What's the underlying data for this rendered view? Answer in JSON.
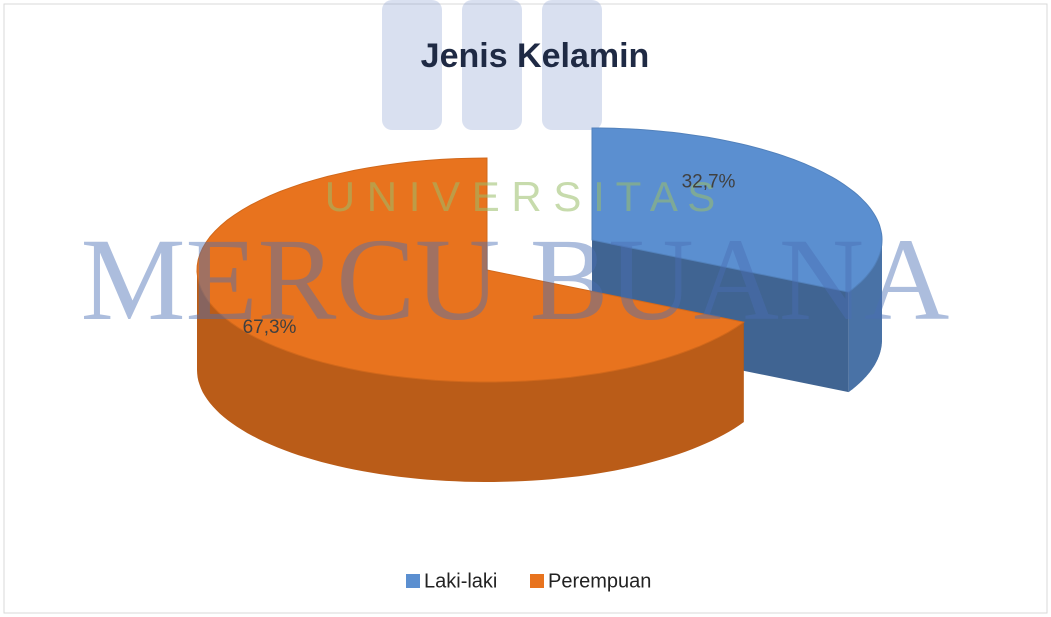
{
  "chart_data": {
    "type": "pie3d",
    "title": "Jenis Kelamin",
    "categories": [
      "Laki-laki",
      "Perempuan"
    ],
    "values": [
      32.7,
      67.3
    ],
    "value_labels": [
      "32,7%",
      "67,3%"
    ],
    "colors": [
      "#5b8fd0",
      "#e8731e"
    ],
    "legend": "bottom",
    "watermark": [
      "U N I V E R S I T A S",
      "MERCU BUANA"
    ]
  }
}
